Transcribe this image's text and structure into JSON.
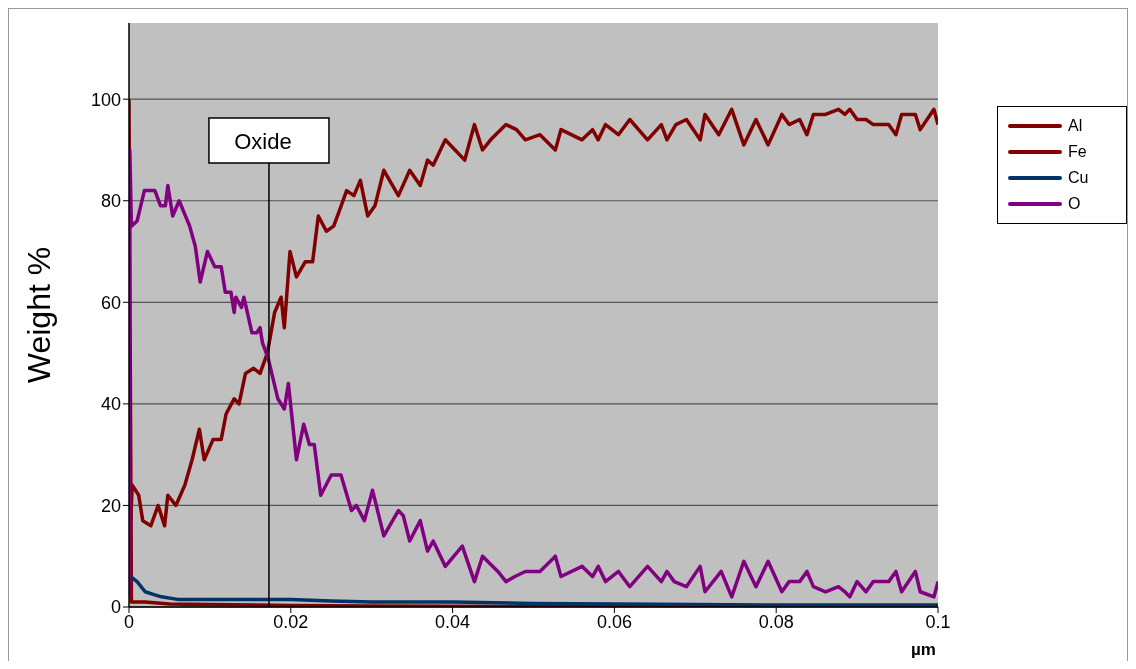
{
  "chart_data": {
    "type": "line",
    "xlabel": "µm",
    "ylabel": "Weight %",
    "xlim": [
      0,
      0.1
    ],
    "xticks": [
      0,
      0.02,
      0.04,
      0.06,
      0.08,
      0.1
    ],
    "ylim": [
      0,
      115
    ],
    "yticks": [
      0,
      20,
      40,
      60,
      80,
      100
    ],
    "grid": "y",
    "legend": "right",
    "marker": "none",
    "line_style": "solid",
    "annotations": [
      {
        "text": "Oxide",
        "x": 0.0173,
        "y": 0
      }
    ],
    "series": [
      {
        "name": "Al",
        "color": "#800000",
        "x": [
          0,
          0.0003,
          0.002,
          0.005,
          0.01,
          0.02,
          0.03,
          0.05,
          0.07,
          0.1
        ],
        "values": [
          100,
          1,
          1,
          0.6,
          0.5,
          0.3,
          0.2,
          0.1,
          0.1,
          0.1
        ]
      },
      {
        "name": "Fe",
        "color": "#800000",
        "x": [
          0,
          0.0004,
          0.0012,
          0.0017,
          0.0027,
          0.0036,
          0.0044,
          0.0048,
          0.0058,
          0.0069,
          0.0078,
          0.0087,
          0.0093,
          0.0104,
          0.0114,
          0.012,
          0.013,
          0.0136,
          0.0144,
          0.0154,
          0.0162,
          0.0171,
          0.018,
          0.0188,
          0.0192,
          0.0199,
          0.0207,
          0.0218,
          0.0227,
          0.0234,
          0.0244,
          0.0253,
          0.026,
          0.0269,
          0.0278,
          0.0286,
          0.0295,
          0.0304,
          0.0315,
          0.0333,
          0.0347,
          0.036,
          0.0369,
          0.0376,
          0.0391,
          0.0415,
          0.0427,
          0.0437,
          0.0447,
          0.0466,
          0.0479,
          0.049,
          0.0508,
          0.0527,
          0.0534,
          0.056,
          0.0573,
          0.058,
          0.0589,
          0.0605,
          0.0619,
          0.0641,
          0.0658,
          0.0665,
          0.0676,
          0.0689,
          0.0706,
          0.0712,
          0.0729,
          0.0745,
          0.076,
          0.0775,
          0.079,
          0.0807,
          0.0816,
          0.0829,
          0.0838,
          0.0846,
          0.0861,
          0.0877,
          0.0885,
          0.0891,
          0.09,
          0.0911,
          0.092,
          0.0939,
          0.0948,
          0.0955,
          0.0972,
          0.0978,
          0.0995,
          0.1
        ],
        "values": [
          9,
          24,
          22,
          17,
          16,
          20,
          16,
          22,
          20,
          24,
          29,
          35,
          29,
          33,
          33,
          38,
          41,
          40,
          46,
          47,
          46,
          50,
          58,
          61,
          55,
          70,
          65,
          68,
          68,
          77,
          74,
          75,
          78,
          82,
          81,
          84,
          77,
          79,
          86,
          81,
          86,
          83,
          88,
          87,
          92,
          88,
          95,
          90,
          92,
          95,
          94,
          92,
          93,
          90,
          94,
          92,
          94,
          92,
          95,
          93,
          96,
          92,
          95,
          92,
          95,
          96,
          92,
          97,
          93,
          98,
          91,
          96,
          91,
          97,
          95,
          96,
          93,
          97,
          97,
          98,
          97,
          98,
          96,
          96,
          95,
          95,
          93,
          97,
          97,
          94,
          98,
          95
        ]
      },
      {
        "name": "Cu",
        "color": "#003366",
        "x": [
          0.0002,
          0.001,
          0.002,
          0.003,
          0.004,
          0.006,
          0.01,
          0.015,
          0.02,
          0.025,
          0.03,
          0.04,
          0.05,
          0.06,
          0.07,
          0.08,
          0.09,
          0.1
        ],
        "values": [
          6,
          5,
          3,
          2.5,
          2,
          1.5,
          1.5,
          1.5,
          1.5,
          1.2,
          1,
          1,
          0.7,
          0.6,
          0.5,
          0.4,
          0.4,
          0.4
        ]
      },
      {
        "name": "O",
        "color": "#800080",
        "x": [
          0,
          0.0001,
          0.0003,
          0.001,
          0.0019,
          0.0032,
          0.0039,
          0.0045,
          0.0048,
          0.0054,
          0.0062,
          0.0075,
          0.0082,
          0.0088,
          0.0097,
          0.0106,
          0.0114,
          0.0119,
          0.0126,
          0.013,
          0.0132,
          0.0139,
          0.0142,
          0.0152,
          0.0158,
          0.0162,
          0.0165,
          0.0172,
          0.0184,
          0.0192,
          0.0197,
          0.0207,
          0.0216,
          0.0223,
          0.0229,
          0.0237,
          0.025,
          0.0262,
          0.0275,
          0.0281,
          0.0291,
          0.0301,
          0.0315,
          0.0333,
          0.0339,
          0.0347,
          0.036,
          0.0369,
          0.0376,
          0.0391,
          0.0412,
          0.0427,
          0.0437,
          0.0456,
          0.0466,
          0.0477,
          0.049,
          0.0508,
          0.0527,
          0.0534,
          0.056,
          0.0573,
          0.058,
          0.0589,
          0.0605,
          0.0619,
          0.0641,
          0.0658,
          0.0665,
          0.0674,
          0.0689,
          0.0706,
          0.0712,
          0.0732,
          0.0745,
          0.076,
          0.0775,
          0.079,
          0.0807,
          0.0816,
          0.0829,
          0.0838,
          0.0846,
          0.0861,
          0.0877,
          0.0885,
          0.0891,
          0.09,
          0.0911,
          0.092,
          0.0939,
          0.0948,
          0.0955,
          0.0972,
          0.0978,
          0.0995,
          0.1
        ],
        "values": [
          2,
          90,
          75,
          76,
          82,
          82,
          79,
          79,
          83,
          77,
          80,
          75,
          71,
          64,
          70,
          67,
          67,
          62,
          62,
          58,
          61,
          59,
          61,
          54,
          54,
          55,
          52,
          49,
          41,
          39,
          44,
          29,
          36,
          32,
          32,
          22,
          26,
          26,
          19,
          20,
          17,
          23,
          14,
          19,
          18,
          13,
          17,
          11,
          13,
          8,
          12,
          5,
          10,
          7,
          5,
          6,
          7,
          7,
          10,
          6,
          8,
          6,
          8,
          5,
          7,
          4,
          8,
          5,
          7,
          5,
          4,
          8,
          3,
          7,
          2,
          9,
          4,
          9,
          3,
          5,
          5,
          7,
          4,
          3,
          4,
          3,
          2,
          5,
          3,
          5,
          5,
          7,
          3,
          7,
          3,
          2,
          5
        ]
      }
    ]
  }
}
